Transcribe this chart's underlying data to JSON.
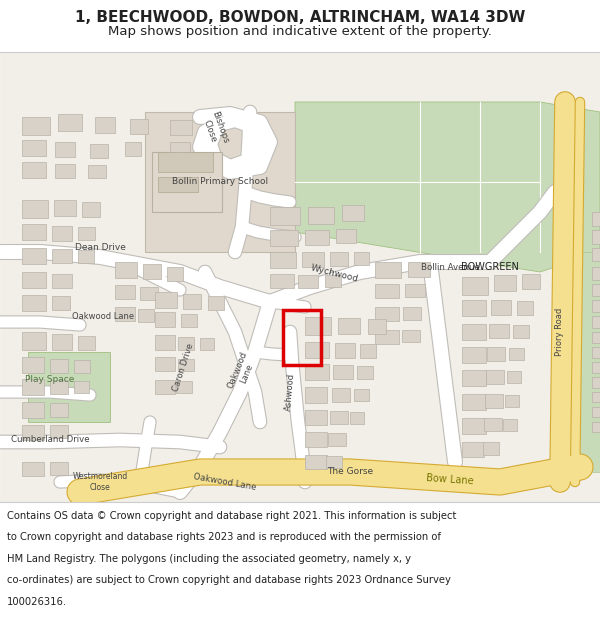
{
  "title_line1": "1, BEECHWOOD, BOWDON, ALTRINCHAM, WA14 3DW",
  "title_line2": "Map shows position and indicative extent of the property.",
  "footer_text": "Contains OS data © Crown copyright and database right 2021. This information is subject to Crown copyright and database rights 2023 and is reproduced with the permission of HM Land Registry. The polygons (including the associated geometry, namely x, y co-ordinates) are subject to Crown copyright and database rights 2023 Ordnance Survey 100026316.",
  "map_bg": "#f2efe9",
  "road_white": "#ffffff",
  "road_edge": "#c0bdb8",
  "road_yellow": "#e8c84a",
  "road_yellow_fill": "#f5e090",
  "road_yellow_edge": "#d4aa30",
  "building_fill": "#d8d2c8",
  "building_edge": "#b8b2a8",
  "green_fill": "#c8dbb8",
  "green_edge": "#a0c080",
  "school_fill": "#e0d8cc",
  "school_edge": "#c0b8a8",
  "plot_edge": "#dd0000",
  "play_fill": "#c8dbb8",
  "play_edge": "#a0c080",
  "header_bg": "#ffffff",
  "footer_bg": "#ffffff",
  "sep_color": "#cccccc",
  "title_fs": 11,
  "sub_fs": 9.5,
  "footer_fs": 7.2,
  "lc": "#444444",
  "lc2": "#222222"
}
